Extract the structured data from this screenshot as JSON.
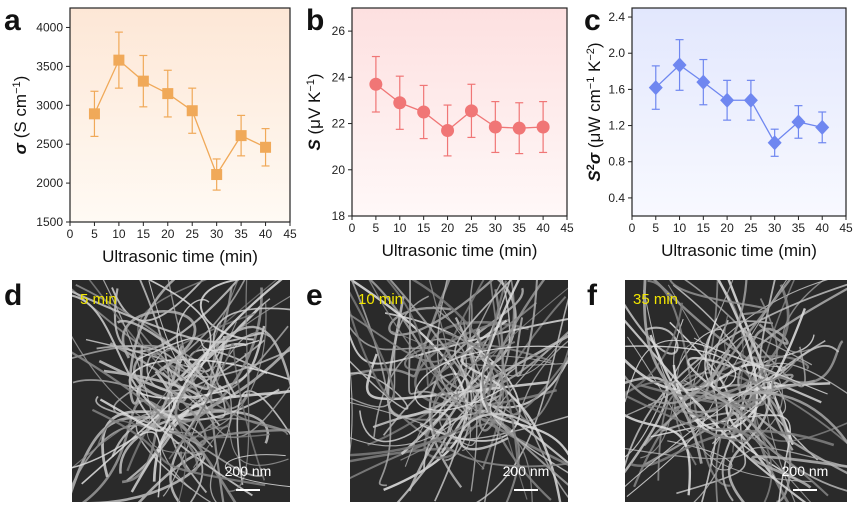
{
  "chart_data": [
    {
      "type": "line",
      "panel_letter": "a",
      "xlabel": "Ultrasonic time (min)",
      "ylabel": "σ (S cm⁻¹)",
      "x": [
        5,
        10,
        15,
        20,
        25,
        30,
        35,
        40
      ],
      "values": [
        2890,
        3580,
        3310,
        3150,
        2930,
        2110,
        2610,
        2460
      ],
      "errors": [
        290,
        360,
        330,
        300,
        290,
        200,
        260,
        240
      ],
      "xlim": [
        0,
        45
      ],
      "ylim": [
        1500,
        4250
      ],
      "xticks": [
        0,
        5,
        10,
        15,
        20,
        25,
        30,
        35,
        40,
        45
      ],
      "yticks": [
        1500,
        2000,
        2500,
        3000,
        3500,
        4000
      ],
      "marker": "square",
      "color": "#f0a959",
      "bg_top": "#fde7d6",
      "bg_bottom": "#fffaf4"
    },
    {
      "type": "line",
      "panel_letter": "b",
      "xlabel": "Ultrasonic time (min)",
      "ylabel": "S (μV K⁻¹)",
      "x": [
        5,
        10,
        15,
        20,
        25,
        30,
        35,
        40
      ],
      "values": [
        23.7,
        22.9,
        22.5,
        21.7,
        22.55,
        21.85,
        21.8,
        21.85
      ],
      "errors": [
        1.2,
        1.15,
        1.15,
        1.1,
        1.15,
        1.1,
        1.1,
        1.1
      ],
      "xlim": [
        0,
        45
      ],
      "ylim": [
        18,
        27
      ],
      "xticks": [
        0,
        5,
        10,
        15,
        20,
        25,
        30,
        35,
        40,
        45
      ],
      "yticks": [
        18,
        20,
        22,
        24,
        26
      ],
      "marker": "circle",
      "color": "#f07676",
      "bg_top": "#fde0e0",
      "bg_bottom": "#fff8f8"
    },
    {
      "type": "line",
      "panel_letter": "c",
      "xlabel": "Ultrasonic time (min)",
      "ylabel": "S²σ (μW cm⁻¹ K⁻²)",
      "x": [
        5,
        10,
        15,
        20,
        25,
        30,
        35,
        40
      ],
      "values": [
        1.62,
        1.87,
        1.68,
        1.48,
        1.48,
        1.01,
        1.24,
        1.18
      ],
      "errors": [
        0.24,
        0.28,
        0.25,
        0.22,
        0.22,
        0.15,
        0.18,
        0.17
      ],
      "xlim": [
        0,
        45
      ],
      "ylim": [
        0.2,
        2.5
      ],
      "xticks": [
        0,
        5,
        10,
        15,
        20,
        25,
        30,
        35,
        40,
        45
      ],
      "yticks": [
        0.4,
        0.8,
        1.2,
        1.6,
        2.0,
        2.4
      ],
      "marker": "diamond",
      "color": "#6f87f0",
      "bg_top": "#e2e7fd",
      "bg_bottom": "#f8f9ff"
    }
  ],
  "images": [
    {
      "panel_letter": "d",
      "label": "5 min",
      "scale_bar": "200 nm"
    },
    {
      "panel_letter": "e",
      "label": "10 min",
      "scale_bar": "200 nm"
    },
    {
      "panel_letter": "f",
      "label": "35 min",
      "scale_bar": "200 nm"
    }
  ]
}
